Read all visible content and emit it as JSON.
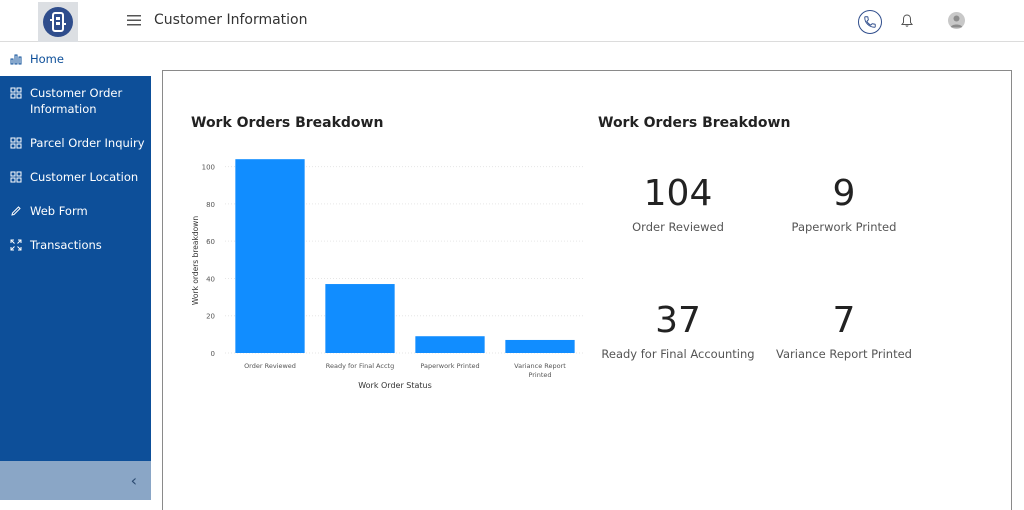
{
  "header": {
    "title": "Customer Information"
  },
  "sidebar": {
    "items": [
      {
        "label": "Home",
        "icon": "bar-chart-icon"
      },
      {
        "label": "Customer Order Information",
        "icon": "grid-icon"
      },
      {
        "label": "Parcel Order Inquiry",
        "icon": "grid-icon"
      },
      {
        "label": "Customer Location",
        "icon": "grid-icon"
      },
      {
        "label": "Web Form",
        "icon": "pencil-icon"
      },
      {
        "label": "Transactions",
        "icon": "expand-icon"
      }
    ],
    "collapse_glyph": "‹"
  },
  "chart_panel": {
    "title": "Work Orders Breakdown"
  },
  "kpi_panel": {
    "title": "Work Orders Breakdown",
    "cards": [
      {
        "value": "104",
        "caption": "Order Reviewed"
      },
      {
        "value": "9",
        "caption": "Paperwork Printed"
      },
      {
        "value": "37",
        "caption": "Ready for Final Accounting"
      },
      {
        "value": "7",
        "caption": "Variance Report Printed"
      }
    ]
  },
  "colors": {
    "sidebar": "#0d4f99",
    "bar": "#118dff",
    "accent": "#2f4d8c"
  },
  "chart_data": {
    "type": "bar",
    "categories": [
      "Order Reviewed",
      "Ready for Final Acctg",
      "Paperwork Printed",
      "Variance Report Printed"
    ],
    "category_lines": [
      [
        "Order Reviewed"
      ],
      [
        "Ready for Final Acctg"
      ],
      [
        "Paperwork Printed"
      ],
      [
        "Variance Report",
        "Printed"
      ]
    ],
    "values": [
      104,
      37,
      9,
      7
    ],
    "xlabel": "Work Order Status",
    "ylabel": "Work orders breakdown",
    "ylim": [
      0,
      110
    ],
    "yticks": [
      0,
      20,
      40,
      60,
      80,
      100
    ],
    "grid": true
  }
}
